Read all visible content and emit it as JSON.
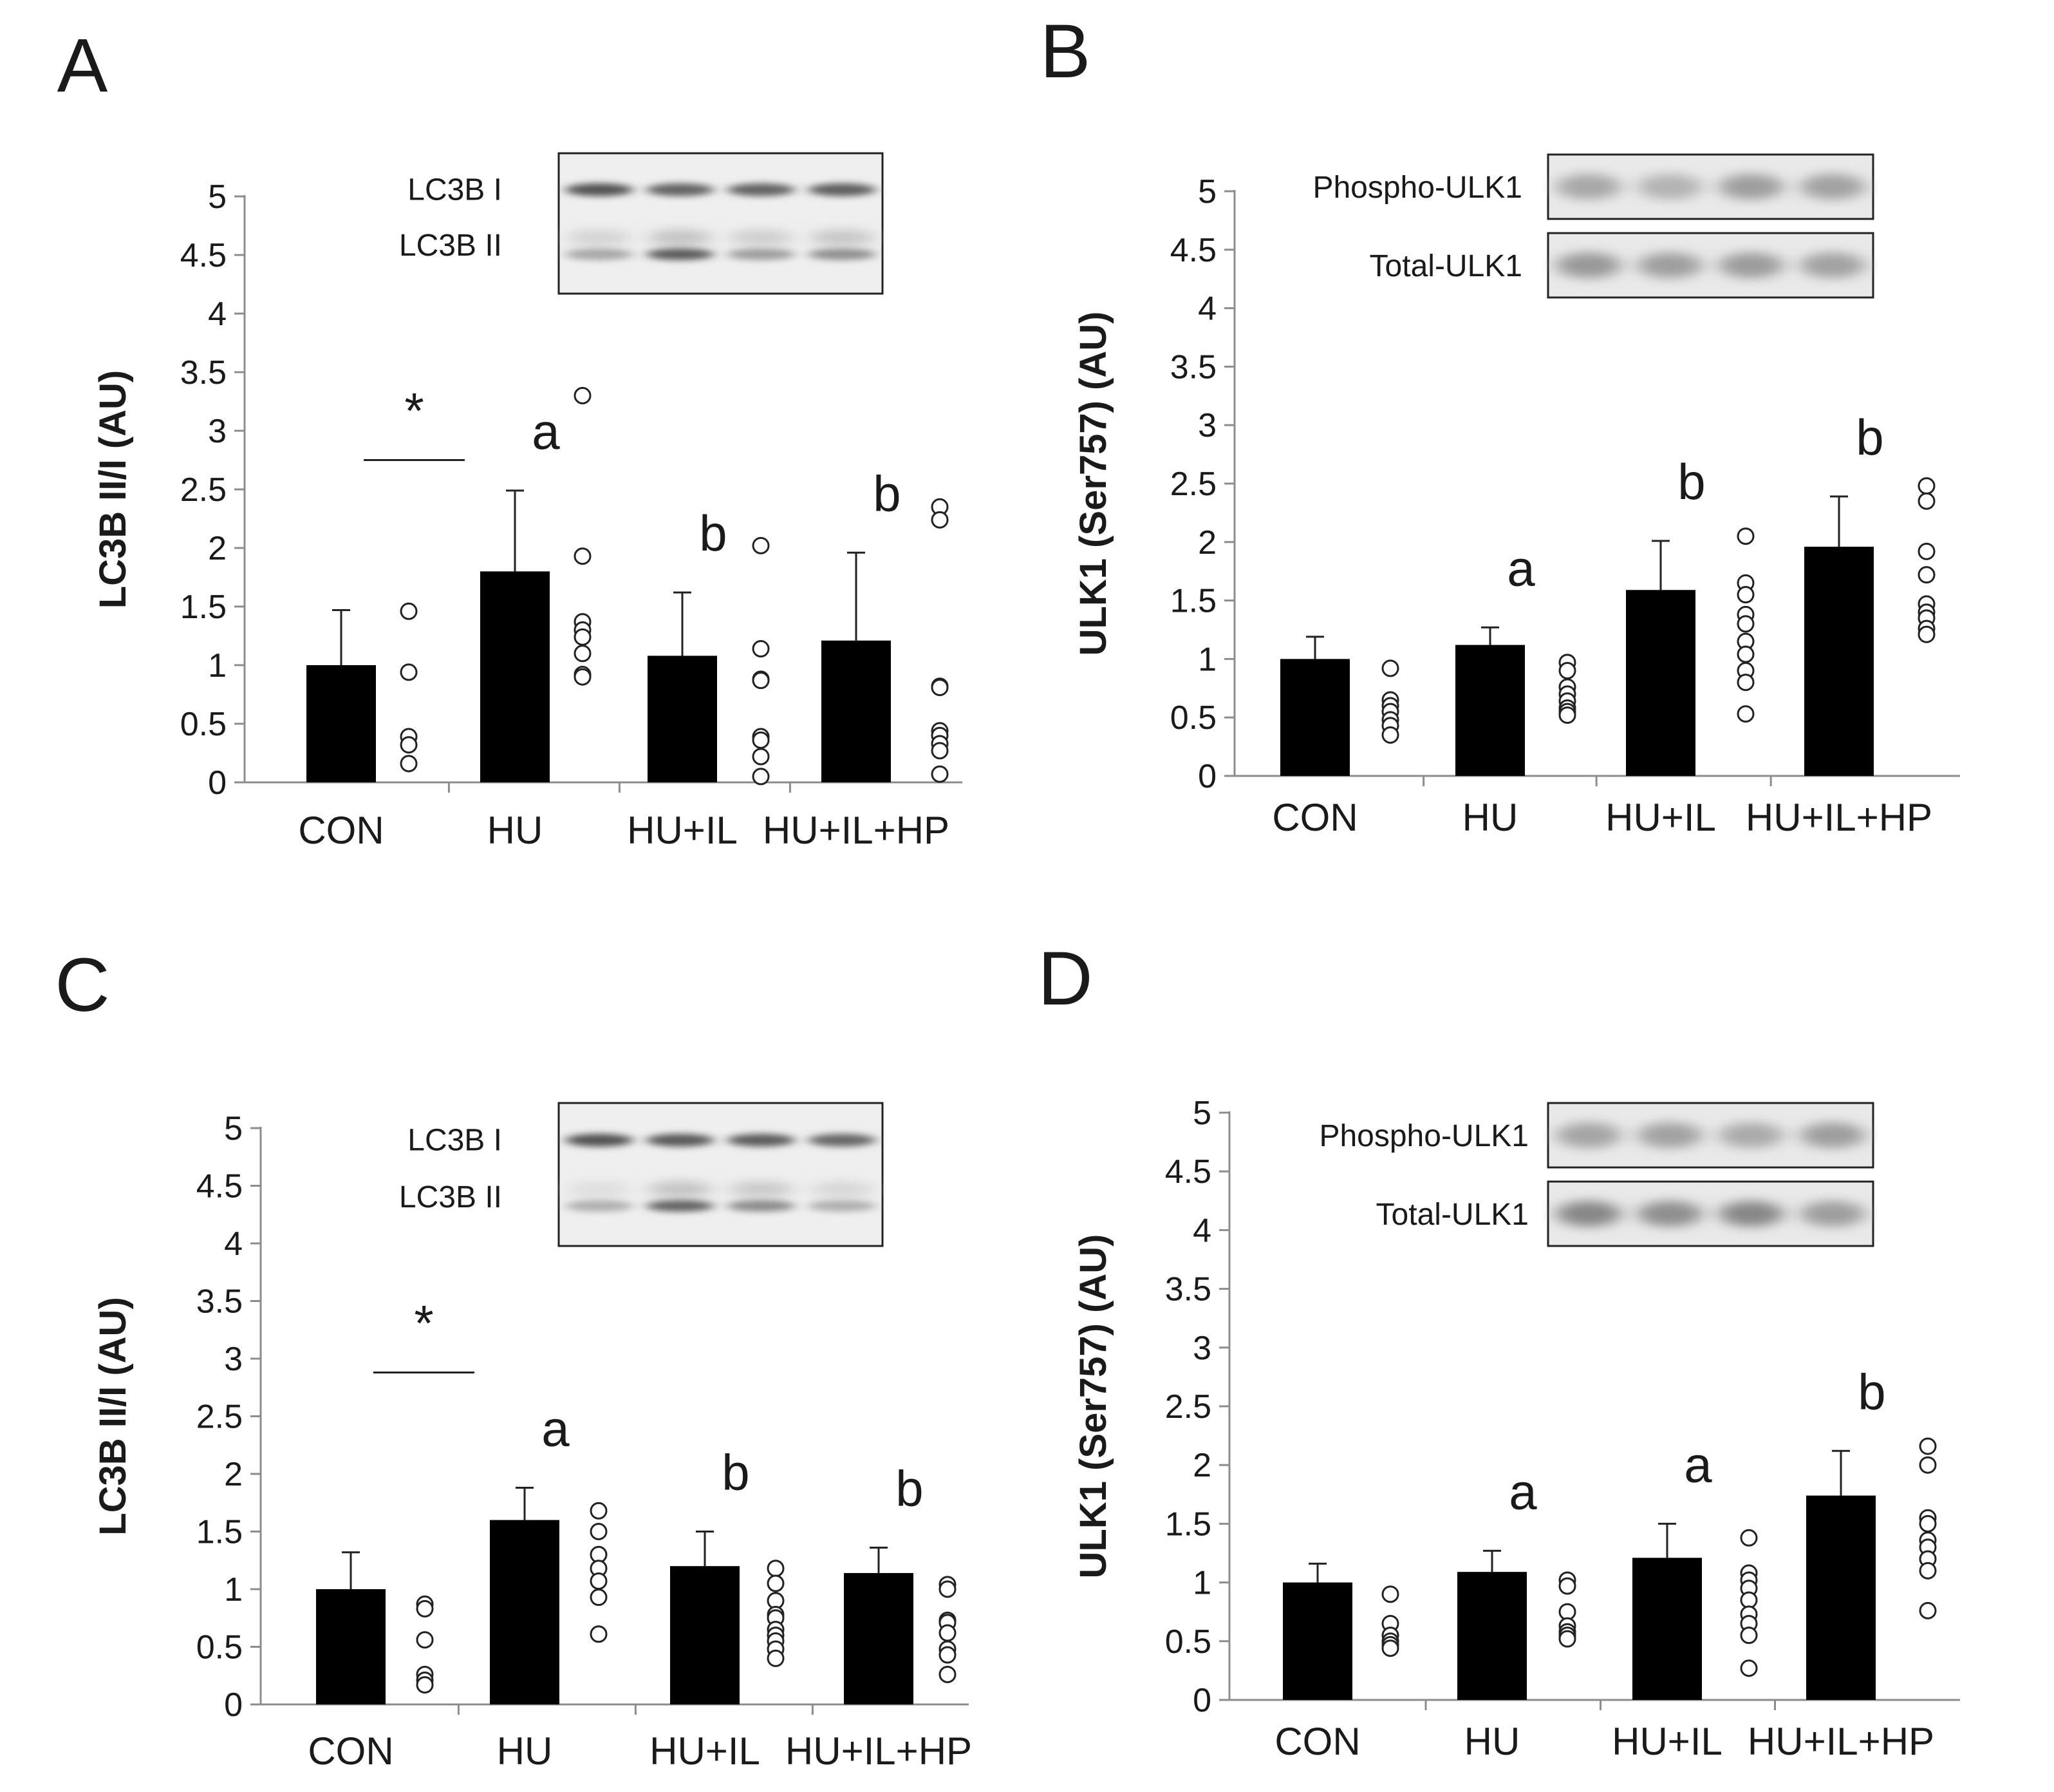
{
  "chart_data": [
    {
      "panel": "A",
      "type": "bar",
      "ylabel": "LC3B II/I (AU)",
      "ylim": [
        0,
        5
      ],
      "yticks": [
        "0",
        "0.5",
        "1",
        "1.5",
        "2",
        "2.5",
        "3",
        "3.5",
        "4",
        "4.5",
        "5"
      ],
      "categories": [
        "CON",
        "HU",
        "HU+IL",
        "HU+IL+HP"
      ],
      "values": [
        1.0,
        1.8,
        1.08,
        1.21
      ],
      "errors": [
        0.47,
        0.69,
        0.54,
        0.75
      ],
      "points": [
        [
          1.46,
          0.94,
          0.39,
          0.32,
          0.16
        ],
        [
          3.3,
          1.93,
          1.37,
          1.3,
          1.24,
          1.1,
          0.92,
          0.9
        ],
        [
          2.02,
          1.14,
          0.88,
          0.87,
          0.39,
          0.36,
          0.22,
          0.05
        ],
        [
          2.35,
          2.24,
          0.82,
          0.81,
          0.44,
          0.4,
          0.33,
          0.27,
          0.07
        ]
      ],
      "letters": [
        "",
        "a",
        "b",
        "b"
      ],
      "significance": {
        "symbol": "*",
        "between": [
          "CON",
          "HU"
        ],
        "y": 2.75
      },
      "blot": {
        "labels": [
          "LC3B I",
          "LC3B II"
        ],
        "style": "single",
        "bands": [
          [
            0.82,
            0.72,
            0.72,
            0.75
          ],
          [
            0.35,
            0.78,
            0.4,
            0.48
          ]
        ],
        "halo": [
          0.18,
          0.3,
          0.22,
          0.28
        ]
      }
    },
    {
      "panel": "B",
      "type": "bar",
      "ylabel": "ULK1 (Ser757) (AU)",
      "ylim": [
        0,
        5
      ],
      "yticks": [
        "0",
        "0.5",
        "1",
        "1.5",
        "2",
        "2.5",
        "3",
        "3.5",
        "4",
        "4.5",
        "5"
      ],
      "categories": [
        "CON",
        "HU",
        "HU+IL",
        "HU+IL+HP"
      ],
      "values": [
        1.0,
        1.12,
        1.59,
        1.96
      ],
      "errors": [
        0.19,
        0.15,
        0.42,
        0.43
      ],
      "points": [
        [
          0.92,
          0.65,
          0.6,
          0.55,
          0.48,
          0.43,
          0.35
        ],
        [
          0.97,
          0.9,
          0.76,
          0.7,
          0.64,
          0.58,
          0.55,
          0.52
        ],
        [
          2.05,
          1.65,
          1.55,
          1.38,
          1.3,
          1.15,
          1.04,
          0.9,
          0.8,
          0.53
        ],
        [
          2.48,
          2.35,
          1.92,
          1.72,
          1.47,
          1.4,
          1.35,
          1.26,
          1.21
        ]
      ],
      "letters": [
        "",
        "a",
        "b",
        "b"
      ],
      "blot": {
        "labels": [
          "Phospho-ULK1",
          "Total-ULK1"
        ],
        "style": "double",
        "bands": [
          [
            0.38,
            0.3,
            0.45,
            0.42
          ],
          [
            0.48,
            0.44,
            0.46,
            0.42
          ]
        ]
      }
    },
    {
      "panel": "C",
      "type": "bar",
      "ylabel": "LC3B II/I (AU)",
      "ylim": [
        0,
        5
      ],
      "yticks": [
        "0",
        "0.5",
        "1",
        "1.5",
        "2",
        "2.5",
        "3",
        "3.5",
        "4",
        "4.5",
        "5"
      ],
      "categories": [
        "CON",
        "HU",
        "HU+IL",
        "HU+IL+HP"
      ],
      "values": [
        1.0,
        1.6,
        1.2,
        1.14
      ],
      "errors": [
        0.32,
        0.28,
        0.3,
        0.22
      ],
      "points": [
        [
          0.87,
          0.83,
          0.56,
          0.26,
          0.21,
          0.17
        ],
        [
          1.68,
          1.5,
          1.3,
          1.18,
          1.07,
          0.93,
          0.61
        ],
        [
          1.18,
          1.05,
          0.9,
          0.78,
          0.75,
          0.65,
          0.6,
          0.55,
          0.48,
          0.4
        ],
        [
          1.04,
          1.0,
          0.73,
          0.71,
          0.62,
          0.48,
          0.43,
          0.26
        ]
      ],
      "letters": [
        "",
        "a",
        "b",
        "b"
      ],
      "significance": {
        "symbol": "*",
        "between": [
          "CON",
          "HU"
        ],
        "y": 2.88
      },
      "blot": {
        "labels": [
          "LC3B I",
          "LC3B II"
        ],
        "style": "single",
        "bands": [
          [
            0.82,
            0.78,
            0.76,
            0.7
          ],
          [
            0.3,
            0.72,
            0.5,
            0.3
          ]
        ],
        "halo": [
          0.1,
          0.3,
          0.25,
          0.15
        ]
      }
    },
    {
      "panel": "D",
      "type": "bar",
      "ylabel": "ULK1 (Ser757) (AU)",
      "ylim": [
        0,
        5
      ],
      "yticks": [
        "0",
        "0.5",
        "1",
        "1.5",
        "2",
        "2.5",
        "3",
        "3.5",
        "4",
        "4.5",
        "5"
      ],
      "categories": [
        "CON",
        "HU",
        "HU+IL",
        "HU+IL+HP"
      ],
      "values": [
        1.0,
        1.09,
        1.21,
        1.74
      ],
      "errors": [
        0.16,
        0.18,
        0.29,
        0.38
      ],
      "points": [
        [
          0.9,
          0.65,
          0.55,
          0.5,
          0.47,
          0.44
        ],
        [
          1.02,
          0.97,
          0.75,
          0.63,
          0.58,
          0.55,
          0.52
        ],
        [
          1.38,
          1.08,
          1.02,
          0.95,
          0.85,
          0.73,
          0.65,
          0.55,
          0.27
        ],
        [
          2.16,
          2.0,
          1.55,
          1.5,
          1.36,
          1.3,
          1.2,
          1.1,
          0.76
        ]
      ],
      "letters": [
        "",
        "a",
        "a",
        "b"
      ],
      "blot": {
        "labels": [
          "Phospho-ULK1",
          "Total-ULK1"
        ],
        "style": "double",
        "bands": [
          [
            0.4,
            0.42,
            0.36,
            0.45
          ],
          [
            0.6,
            0.55,
            0.6,
            0.45
          ]
        ]
      }
    }
  ]
}
